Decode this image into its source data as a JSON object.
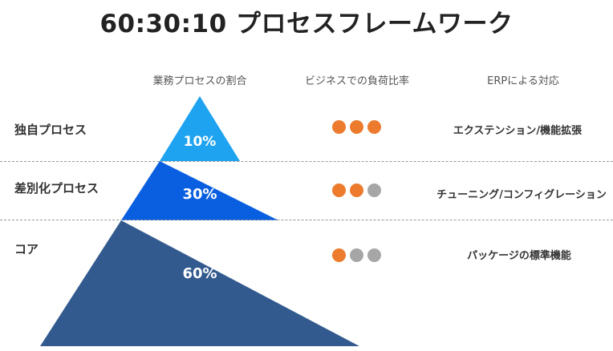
{
  "title": "60:30:10 プロセスフレームワーク",
  "headers": {
    "ratio": "業務プロセスの割合",
    "load": "ビジネスでの負荷比率",
    "erp": "ERPによる対応"
  },
  "rows": [
    {
      "label": "独自プロセス",
      "percent": "10%",
      "color": "#1ea3f0",
      "load_dots": [
        "filled",
        "filled",
        "filled"
      ],
      "erp": "エクステンション/機能拡張"
    },
    {
      "label": "差別化プロセス",
      "percent": "30%",
      "color": "#0a5fe0",
      "load_dots": [
        "filled",
        "filled",
        "empty"
      ],
      "erp": "チューニング/コンフィグレーション"
    },
    {
      "label": "コア",
      "percent": "60%",
      "color": "#335a8e",
      "load_dots": [
        "filled",
        "empty",
        "empty"
      ],
      "erp": "パッケージの標準機能"
    }
  ],
  "dot_colors": {
    "filled": "#ec7b2e",
    "empty": "#a6a6a6"
  }
}
